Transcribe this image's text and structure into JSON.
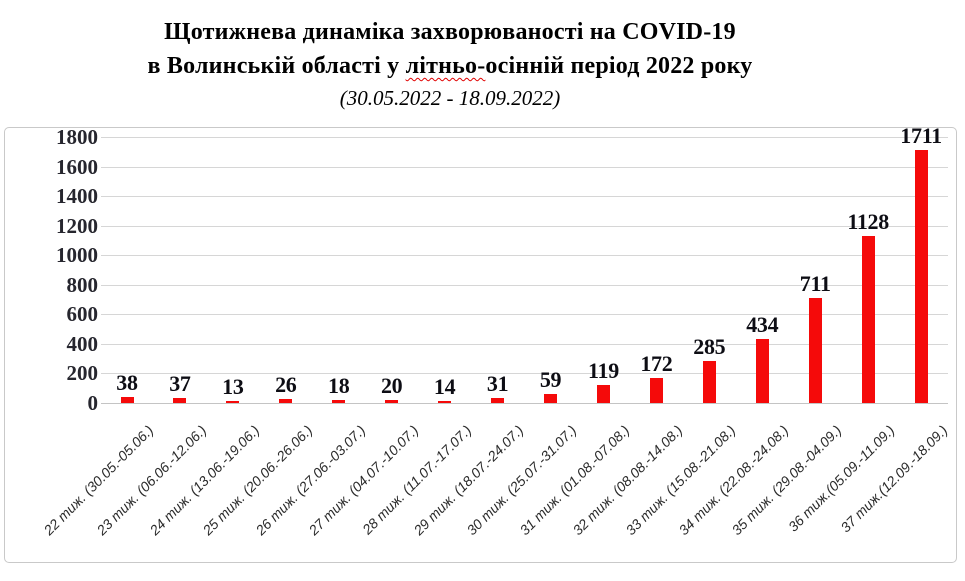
{
  "title": {
    "line1": "Щотижнева динаміка захворюваності на COVID-19",
    "line2_before": "в Волинській області у",
    "line2_misspelled": "літньо-",
    "line2_after": "осінній період 2022 року",
    "line3": "(30.05.2022 - 18.09.2022)"
  },
  "colors": {
    "bar": "#f50a0a",
    "gridline": "#d6d6d6",
    "axis_line": "#c4c4c4",
    "chart_border": "#c9c9c9",
    "spellcheck_underline": "#e00000",
    "value_label": "#0d0d14",
    "tick_label": "#26262e",
    "category_label": "#2b2b2b",
    "title_text": "#000000"
  },
  "chart_data": {
    "type": "bar",
    "title": "Щотижнева динаміка захворюваності на COVID-19 в Волинській області у літньо-осінній період 2022 року (30.05.2022 - 18.09.2022)",
    "categories": [
      "22 тиж. (30.05.-05.06.)",
      "23 тиж. (06.06.-12.06.)",
      "24 тиж. (13.06.-19.06.)",
      "25 тиж. (20.06.-26.06.)",
      "26 тиж. (27.06.-03.07.)",
      "27 тиж. (04.07.-10.07.)",
      "28 тиж. (11.07.-17.07.)",
      "29 тиж. (18.07.-24.07.)",
      "30 тиж. (25.07.-31.07.)",
      "31 тиж. (01.08.-07.08.)",
      "32 тиж. (08.08.-14.08.)",
      "33 тиж. (15.08.-21.08.)",
      "34 тиж. (22.08.-24.08.)",
      "35 тиж. (29.08.-04.09.)",
      "36 тиж.(05.09.-11.09.)",
      "37 тиж.(12.09.-18.09.)"
    ],
    "values": [
      38,
      37,
      13,
      26,
      18,
      20,
      14,
      31,
      59,
      119,
      172,
      285,
      434,
      711,
      1128,
      1711
    ],
    "xlabel": "",
    "ylabel": "",
    "ylim": [
      0,
      1800
    ],
    "ytick_step": 200,
    "grid": true,
    "legend": "none",
    "bar_color": "#f50a0a",
    "data_labels": true
  }
}
